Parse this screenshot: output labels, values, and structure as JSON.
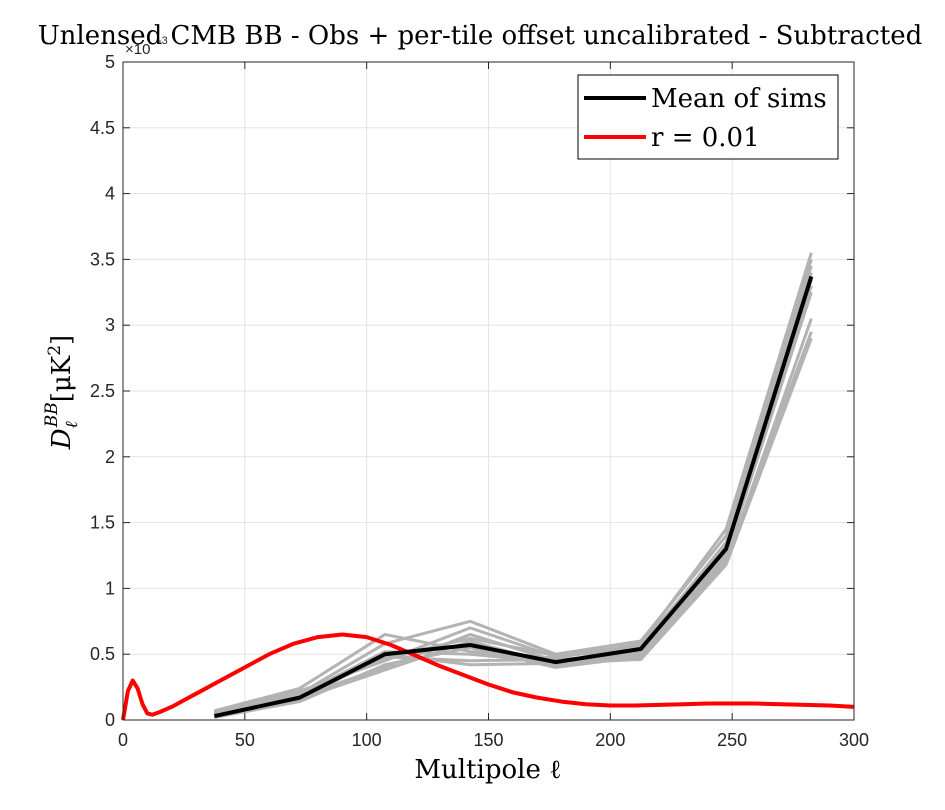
{
  "chart_data": {
    "type": "line",
    "title": "Unlensed CMB BB - Obs + per-tile offset uncalibrated - Subtracted",
    "xlabel": "Multipole ℓ",
    "ylabel": "DℓBB [μK²]",
    "ylabel_main": "D",
    "ylabel_sub": "ℓ",
    "ylabel_sup": "BB",
    "ylabel_unit_open": "[μK",
    "ylabel_unit_sup": "2",
    "ylabel_unit_close": "]",
    "y_exponent_label": "×10",
    "y_exponent_power": "-3",
    "xlim": [
      0,
      300
    ],
    "ylim": [
      0,
      5
    ],
    "x_ticks": [
      0,
      50,
      100,
      150,
      200,
      250,
      300
    ],
    "x_tick_labels": [
      "0",
      "50",
      "100",
      "150",
      "200",
      "250",
      "300"
    ],
    "y_ticks": [
      0,
      0.5,
      1,
      1.5,
      2,
      2.5,
      3,
      3.5,
      4,
      4.5,
      5
    ],
    "y_tick_labels": [
      "0",
      "0.5",
      "1",
      "1.5",
      "2",
      "2.5",
      "3",
      "3.5",
      "4",
      "4.5",
      "5"
    ],
    "grid": true,
    "legend_position": "top-right",
    "legend": [
      {
        "label": "Mean of sims",
        "color": "#000000"
      },
      {
        "label": "r = 0.01",
        "color": "#ff0000"
      }
    ],
    "sims": {
      "color": "#b3b3b3",
      "x": [
        37.5,
        72.5,
        107.5,
        142.5,
        177.5,
        212.5,
        247.5,
        282.5
      ],
      "curves": [
        [
          0.07,
          0.24,
          0.65,
          0.52,
          0.47,
          0.58,
          1.45,
          3.55
        ],
        [
          0.05,
          0.2,
          0.58,
          0.75,
          0.5,
          0.6,
          1.4,
          3.5
        ],
        [
          0.06,
          0.22,
          0.45,
          0.7,
          0.48,
          0.55,
          1.35,
          3.45
        ],
        [
          0.04,
          0.18,
          0.4,
          0.65,
          0.45,
          0.52,
          1.3,
          3.3
        ],
        [
          0.03,
          0.16,
          0.38,
          0.6,
          0.42,
          0.5,
          1.25,
          3.25
        ],
        [
          0.02,
          0.14,
          0.42,
          0.55,
          0.4,
          0.48,
          1.2,
          3.05
        ],
        [
          0.03,
          0.15,
          0.5,
          0.42,
          0.43,
          0.46,
          1.18,
          2.9
        ],
        [
          0.04,
          0.17,
          0.48,
          0.45,
          0.46,
          0.49,
          1.22,
          2.95
        ],
        [
          0.05,
          0.19,
          0.52,
          0.5,
          0.44,
          0.51,
          1.28,
          3.4
        ],
        [
          0.06,
          0.21,
          0.47,
          0.62,
          0.49,
          0.57,
          1.33,
          3.35
        ]
      ]
    },
    "series": [
      {
        "name": "Mean of sims",
        "color": "#000000",
        "x": [
          37.5,
          72.5,
          107.5,
          142.5,
          177.5,
          212.5,
          247.5,
          282.5
        ],
        "y": [
          0.03,
          0.17,
          0.5,
          0.57,
          0.44,
          0.54,
          1.3,
          3.37
        ]
      },
      {
        "name": "r = 0.01",
        "color": "#ff0000",
        "x": [
          0,
          2,
          4,
          6,
          8,
          10,
          12,
          15,
          20,
          25,
          30,
          40,
          50,
          60,
          70,
          80,
          90,
          100,
          110,
          120,
          130,
          140,
          150,
          160,
          170,
          180,
          190,
          200,
          210,
          220,
          230,
          240,
          250,
          260,
          270,
          280,
          290,
          300
        ],
        "y": [
          0,
          0.22,
          0.3,
          0.24,
          0.12,
          0.05,
          0.04,
          0.06,
          0.1,
          0.15,
          0.2,
          0.3,
          0.4,
          0.5,
          0.58,
          0.63,
          0.65,
          0.63,
          0.57,
          0.49,
          0.41,
          0.34,
          0.27,
          0.21,
          0.17,
          0.14,
          0.12,
          0.11,
          0.11,
          0.115,
          0.12,
          0.125,
          0.125,
          0.125,
          0.12,
          0.115,
          0.11,
          0.1
        ]
      }
    ]
  }
}
